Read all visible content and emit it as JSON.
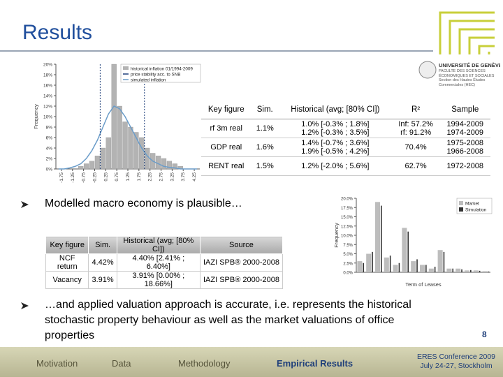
{
  "header": {
    "title": "Results"
  },
  "logo": {
    "name": "UNIVERSITÉ DE GENÈVE",
    "faculty": "FACULTÉ DES SCIENCES ÉCONOMIQUES ET SOCIALES",
    "section": "Section des Hautes Études Commerciales (HEC)"
  },
  "chart_data": [
    {
      "type": "histogram",
      "y_label": "Frequency",
      "bins": [
        -2,
        -1.75,
        -1.5,
        -1.25,
        -1,
        -0.75,
        -0.5,
        -0.25,
        0,
        0.25,
        0.5,
        0.75,
        1,
        1.25,
        1.5,
        1.75,
        2,
        2.25,
        2.5,
        2.75,
        3,
        3.25,
        3.5,
        3.75,
        4,
        4.25,
        4.5
      ],
      "xlim": [
        -2,
        4.5
      ],
      "xticks": [
        -1.75,
        -1.25,
        -0.75,
        -0.25,
        0.25,
        0.75,
        1.25,
        1.75,
        2.25,
        2.75,
        3.25,
        3.75,
        4.25
      ],
      "ylim": [
        0,
        20
      ],
      "yticks": [
        {
          "value": 0,
          "label": "0%"
        },
        {
          "value": 2,
          "label": "2%"
        },
        {
          "value": 4,
          "label": "4%"
        },
        {
          "value": 6,
          "label": "6%"
        },
        {
          "value": 8,
          "label": "8%"
        },
        {
          "value": 10,
          "label": "10%"
        },
        {
          "value": 12,
          "label": "12%"
        },
        {
          "value": 14,
          "label": "14%"
        },
        {
          "value": 16,
          "label": "16%"
        },
        {
          "value": 18,
          "label": "18%"
        },
        {
          "value": 20,
          "label": "20%"
        }
      ],
      "series": [
        {
          "name": "historical inflation 01/1994-2009",
          "color": "#b3b3b3",
          "style": "bar",
          "values": [
            0,
            0,
            0,
            0,
            0.5,
            1,
            1.5,
            2.5,
            4,
            6,
            20,
            12,
            9,
            8,
            7,
            6,
            4,
            3,
            2.5,
            2,
            1.5,
            1,
            0.5,
            0,
            0,
            0
          ]
        },
        {
          "name": "simulated inflation",
          "color": "#6a9cc9",
          "style": "line",
          "values": [
            0,
            0,
            0.2,
            0.5,
            1,
            2,
            3.5,
            5.5,
            8,
            10.5,
            12,
            11.5,
            10,
            8,
            6,
            4,
            2.5,
            1.5,
            1,
            0.5,
            0.3,
            0.2,
            0,
            0,
            0,
            0
          ]
        }
      ],
      "reference_lines": {
        "name": "price stability acc. to SNB",
        "color": "#1f3f7a",
        "x": [
          0,
          2
        ]
      }
    },
    {
      "type": "bar",
      "y_label": "Frequency",
      "x_label": "Term of Leases",
      "categories": [
        null,
        null,
        null,
        null,
        null,
        null,
        null,
        null,
        null,
        null,
        null,
        null,
        null,
        null,
        null
      ],
      "ylim": [
        0,
        20
      ],
      "yticks": [
        {
          "value": 0,
          "label": "0.0%"
        },
        {
          "value": 2.5,
          "label": "2.5%"
        },
        {
          "value": 5,
          "label": "5.0%"
        },
        {
          "value": 7.5,
          "label": "7.5%"
        },
        {
          "value": 10,
          "label": "10.0%"
        },
        {
          "value": 12.5,
          "label": "12.5%"
        },
        {
          "value": 15,
          "label": "15.0%"
        },
        {
          "value": 17.5,
          "label": "17.5%"
        },
        {
          "value": 20,
          "label": "20.0%"
        }
      ],
      "series": [
        {
          "name": "Market",
          "color": "#bdbdbd",
          "values": [
            3,
            5,
            19,
            4,
            2,
            12,
            3,
            2,
            1,
            6,
            1,
            1,
            0.5,
            0.5,
            0.3
          ]
        },
        {
          "name": "Simulation",
          "color": "#333333",
          "values": [
            2.5,
            5.5,
            18,
            4.5,
            2.5,
            11,
            3.5,
            2,
            1.5,
            5.5,
            1,
            0.8,
            0.6,
            0.4,
            0.2
          ]
        }
      ]
    }
  ],
  "table_1": {
    "headers": [
      "Key figure",
      "Sim.",
      "Historical (avg; [80% CI])",
      "R²",
      "Sample"
    ],
    "rows": [
      [
        [
          "rf 3m real"
        ],
        [
          "1.1%"
        ],
        [
          "1.0% [-0.3% ; 1.8%]",
          "1.2% [-0.3% ; 3.5%]"
        ],
        [
          "Inf: 57.2%",
          "rf: 91.2%"
        ],
        [
          "1994-2009",
          "1974-2009"
        ]
      ],
      [
        [
          "GDP real"
        ],
        [
          "1.6%"
        ],
        [
          "1.4% [-0.7% ; 3.6%]",
          "1.9% [-0.5% ; 4.2%]"
        ],
        [
          "70.4%"
        ],
        [
          "1975-2008",
          "1966-2008"
        ]
      ],
      [
        [
          "RENT real"
        ],
        [
          "1.5%"
        ],
        [
          "1.2% [-2.0% ; 5.6%]"
        ],
        [
          "62.7%"
        ],
        [
          "1972-2008"
        ]
      ]
    ]
  },
  "bullet_1": "Modelled macro economy is plausible…",
  "table_2": {
    "headers": [
      "Key figure",
      "Sim.",
      "Historical (avg; [80% CI])",
      "Source"
    ],
    "rows": [
      [
        "NCF return",
        "4.42%",
        "4.40% [2.41% ; 6.40%]",
        "IAZI SPB® 2000-2008"
      ],
      [
        "Vacancy",
        "3.91%",
        "3.91% [0.00% ; 18.66%]",
        "IAZI SPB® 2000-2008"
      ]
    ]
  },
  "bullet_2": "…and applied valuation approach is accurate, i.e. represents the historical stochastic property behaviour as well as the market valuations of office properties",
  "page_number": "8",
  "footer": {
    "nav": [
      "Motivation",
      "Data",
      "Methodology",
      "Empirical Results"
    ],
    "conference": "ERES Conference 2009",
    "dates": "July 24-27, Stockholm"
  }
}
